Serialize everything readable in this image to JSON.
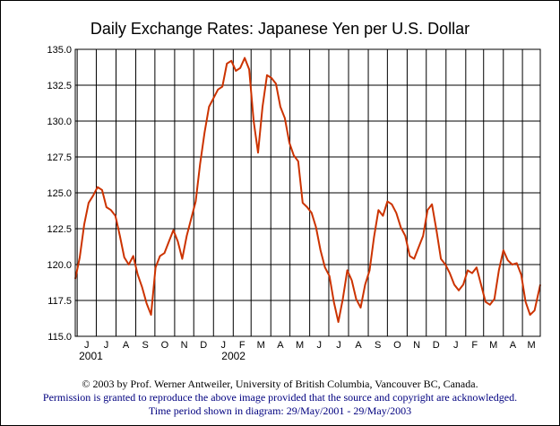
{
  "colors": {
    "series": "#cc3300",
    "grid": "#000000",
    "text_link": "#00007f"
  },
  "chart_data": {
    "type": "line",
    "title": "Daily Exchange Rates: Japanese Yen per U.S. Dollar",
    "xlabel": "",
    "ylabel": "",
    "ylim": [
      115.0,
      135.0
    ],
    "y_ticks": [
      "115.0",
      "117.5",
      "120.0",
      "122.5",
      "125.0",
      "127.5",
      "130.0",
      "132.5",
      "135.0"
    ],
    "x_range": [
      "2001-05-29",
      "2003-05-29"
    ],
    "x_month_labels": [
      "J",
      "J",
      "A",
      "S",
      "O",
      "N",
      "D",
      "J",
      "F",
      "M",
      "A",
      "M",
      "J",
      "J",
      "A",
      "S",
      "O",
      "N",
      "D",
      "J",
      "F",
      "M",
      "A",
      "M"
    ],
    "year_labels": [
      "2001",
      "2002"
    ],
    "grid": true,
    "series": [
      {
        "x": [
          "2001-05-29",
          "2001-06-05",
          "2001-06-12",
          "2001-06-19",
          "2001-06-26",
          "2001-07-03",
          "2001-07-10",
          "2001-07-17",
          "2001-07-24",
          "2001-07-31",
          "2001-08-07",
          "2001-08-14",
          "2001-08-21",
          "2001-08-28",
          "2001-09-04",
          "2001-09-11",
          "2001-09-18",
          "2001-09-25",
          "2001-10-02",
          "2001-10-09",
          "2001-10-16",
          "2001-10-23",
          "2001-10-30",
          "2001-11-06",
          "2001-11-13",
          "2001-11-20",
          "2001-11-27",
          "2001-12-04",
          "2001-12-11",
          "2001-12-18",
          "2001-12-25",
          "2002-01-01",
          "2002-01-08",
          "2002-01-15",
          "2002-01-22",
          "2002-01-29",
          "2002-02-05",
          "2002-02-12",
          "2002-02-19",
          "2002-02-26",
          "2002-03-05",
          "2002-03-12",
          "2002-03-19",
          "2002-03-26",
          "2002-04-02",
          "2002-04-09",
          "2002-04-16",
          "2002-04-23",
          "2002-04-30",
          "2002-05-07",
          "2002-05-14",
          "2002-05-21",
          "2002-05-28",
          "2002-06-04",
          "2002-06-11",
          "2002-06-18",
          "2002-06-25",
          "2002-07-02",
          "2002-07-09",
          "2002-07-16",
          "2002-07-23",
          "2002-07-30",
          "2002-08-06",
          "2002-08-13",
          "2002-08-20",
          "2002-08-27",
          "2002-09-03",
          "2002-09-10",
          "2002-09-17",
          "2002-09-24",
          "2002-10-01",
          "2002-10-08",
          "2002-10-15",
          "2002-10-22",
          "2002-10-29",
          "2002-11-05",
          "2002-11-12",
          "2002-11-19",
          "2002-11-26",
          "2002-12-03",
          "2002-12-10",
          "2002-12-17",
          "2002-12-24",
          "2002-12-31",
          "2003-01-07",
          "2003-01-14",
          "2003-01-21",
          "2003-01-28",
          "2003-02-04",
          "2003-02-11",
          "2003-02-18",
          "2003-02-25",
          "2003-03-04",
          "2003-03-11",
          "2003-03-18",
          "2003-03-25",
          "2003-04-01",
          "2003-04-08",
          "2003-04-15",
          "2003-04-22",
          "2003-04-29",
          "2003-05-06",
          "2003-05-13",
          "2003-05-20",
          "2003-05-29"
        ],
        "values": [
          119.0,
          120.5,
          122.8,
          124.3,
          124.8,
          125.4,
          125.2,
          124.0,
          123.8,
          123.4,
          122.0,
          120.5,
          120.0,
          120.6,
          119.3,
          118.4,
          117.3,
          116.5,
          119.8,
          120.6,
          120.8,
          121.6,
          122.4,
          121.6,
          120.4,
          122.0,
          123.2,
          124.4,
          127.0,
          129.2,
          131.0,
          131.6,
          132.2,
          132.4,
          134.0,
          134.2,
          133.5,
          133.7,
          134.4,
          133.6,
          130.0,
          127.8,
          131.0,
          133.2,
          133.0,
          132.6,
          131.0,
          130.2,
          128.5,
          127.6,
          127.2,
          124.3,
          124.0,
          123.6,
          122.6,
          121.0,
          119.8,
          119.2,
          117.4,
          116.0,
          117.6,
          119.6,
          118.9,
          117.6,
          117.0,
          118.6,
          119.6,
          121.9,
          123.8,
          123.4,
          124.4,
          124.2,
          123.6,
          122.6,
          122.0,
          120.6,
          120.4,
          121.2,
          122.0,
          123.8,
          124.2,
          122.4,
          120.4,
          120.0,
          119.4,
          118.6,
          118.2,
          118.6,
          119.6,
          119.4,
          119.8,
          118.6,
          117.4,
          117.2,
          117.6,
          119.6,
          121.0,
          120.3,
          120.0,
          120.1,
          119.3,
          117.4,
          116.5,
          116.8,
          118.6
        ]
      }
    ]
  },
  "footer": {
    "line1": "© 2003 by Prof. Werner Antweiler, University of British Columbia, Vancouver BC, Canada.",
    "line2": "Permission is granted to reproduce the above image provided that the source and copyright are acknowledged.",
    "line3": "Time period shown in diagram: 29/May/2001 - 29/May/2003"
  }
}
